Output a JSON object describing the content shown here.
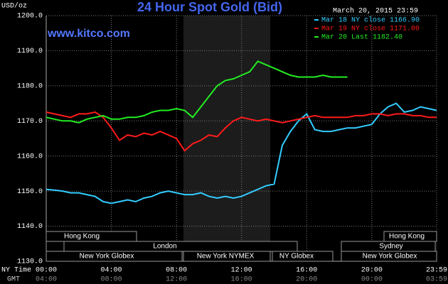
{
  "chart_data": {
    "type": "line",
    "title": "24 Hour Spot Gold (Bid)",
    "subtitle": "www.kitco.com",
    "date": "March 20, 2015 23:59",
    "y_label": "USD/oz",
    "x_label": "NY Time",
    "x2_label": "GMT",
    "x": [
      0,
      0.5,
      1,
      1.5,
      2,
      2.5,
      3,
      3.5,
      4,
      4.5,
      5,
      5.5,
      6,
      6.5,
      7,
      7.5,
      8,
      8.5,
      9,
      9.5,
      10,
      10.5,
      11,
      11.5,
      12,
      12.5,
      13,
      13.5,
      14,
      14.5,
      15,
      15.5,
      16,
      16.5,
      17,
      17.5,
      18,
      18.5,
      19,
      19.5,
      20,
      20.5,
      21,
      21.5,
      22,
      22.5,
      23,
      23.5,
      23.98
    ],
    "series": [
      {
        "name": "Mar 18 NY close 1166.90",
        "color": "#33ccff",
        "values": [
          1150.5,
          1150.3,
          1150,
          1149.5,
          1149.5,
          1149,
          1148.5,
          1147,
          1146.5,
          1147,
          1147.5,
          1147,
          1148,
          1148.5,
          1149.5,
          1150,
          1149.5,
          1149,
          1149,
          1149.5,
          1148.5,
          1148,
          1148.5,
          1148,
          1148.5,
          1149.5,
          1150.5,
          1151.5,
          1152,
          1163,
          1167,
          1170,
          1172,
          1167.5,
          1167,
          1167,
          1167.5,
          1168,
          1168,
          1168.5,
          1169,
          1172,
          1174,
          1175,
          1172.5,
          1173,
          1174,
          1173.5,
          1173
        ]
      },
      {
        "name": "Mar 19 NY close 1171.00",
        "color": "#ff1a1a",
        "values": [
          1172.5,
          1172,
          1171.5,
          1171,
          1172,
          1172,
          1172.5,
          1171,
          1168,
          1164.5,
          1166,
          1165.5,
          1166.5,
          1166,
          1167,
          1166,
          1165,
          1161.5,
          1163.5,
          1164.5,
          1166,
          1165.5,
          1168,
          1170,
          1171,
          1170.5,
          1170,
          1170.5,
          1170,
          1169.5,
          1170,
          1170.5,
          1171,
          1171.5,
          1171,
          1171,
          1171,
          1171,
          1171.5,
          1171.5,
          1172,
          1172,
          1171.5,
          1172,
          1172,
          1171.5,
          1171.5,
          1171,
          1171
        ]
      },
      {
        "name": "Mar 20 Last 1182.40",
        "color": "#22ee22",
        "values": [
          1171,
          1170.5,
          1170,
          1170,
          1169.5,
          1170.5,
          1171,
          1171.5,
          1170.5,
          1170.5,
          1171,
          1171,
          1171.5,
          1172.5,
          1173,
          1173,
          1173.5,
          1173,
          1171,
          1174,
          1177,
          1180,
          1181.5,
          1182,
          1183,
          1184,
          1187,
          1186,
          1185,
          1184,
          1183,
          1182.5,
          1182.5,
          1182.5,
          1183,
          1182.5,
          1182.5,
          1182.5,
          null,
          null,
          null,
          null,
          null,
          null,
          null,
          null,
          null,
          null,
          null
        ]
      }
    ],
    "xlim": [
      0,
      23.983
    ],
    "xticks": [
      {
        "value": 0,
        "label": "00:00"
      },
      {
        "value": 4,
        "label": "04:00"
      },
      {
        "value": 8,
        "label": "08:00"
      },
      {
        "value": 12,
        "label": "12:00"
      },
      {
        "value": 16,
        "label": "16:00"
      },
      {
        "value": 20,
        "label": "20:00"
      },
      {
        "value": 23.983,
        "label": "23:59"
      }
    ],
    "x2_tick_labels": [
      "04:00",
      "08:00",
      "12:00",
      "16:00",
      "20:00",
      "00:00",
      "03:59"
    ],
    "ylim": [
      1130,
      1200
    ],
    "yticks": [
      {
        "value": 1130,
        "label": "1130.0"
      },
      {
        "value": 1140,
        "label": "1140.0"
      },
      {
        "value": 1150,
        "label": "1150.0"
      },
      {
        "value": 1160,
        "label": "1160.0"
      },
      {
        "value": 1170,
        "label": "1170.0"
      },
      {
        "value": 1180,
        "label": "1180.0"
      },
      {
        "value": 1190,
        "label": "1190.0"
      },
      {
        "value": 1200,
        "label": "1200.0"
      }
    ],
    "grid": true,
    "sessions": [
      "Hong Kong",
      "Hong Kong",
      "London",
      "Sydney",
      "New York Globex",
      "New York NYMEX",
      "NY Globex",
      "New York Globex"
    ]
  }
}
